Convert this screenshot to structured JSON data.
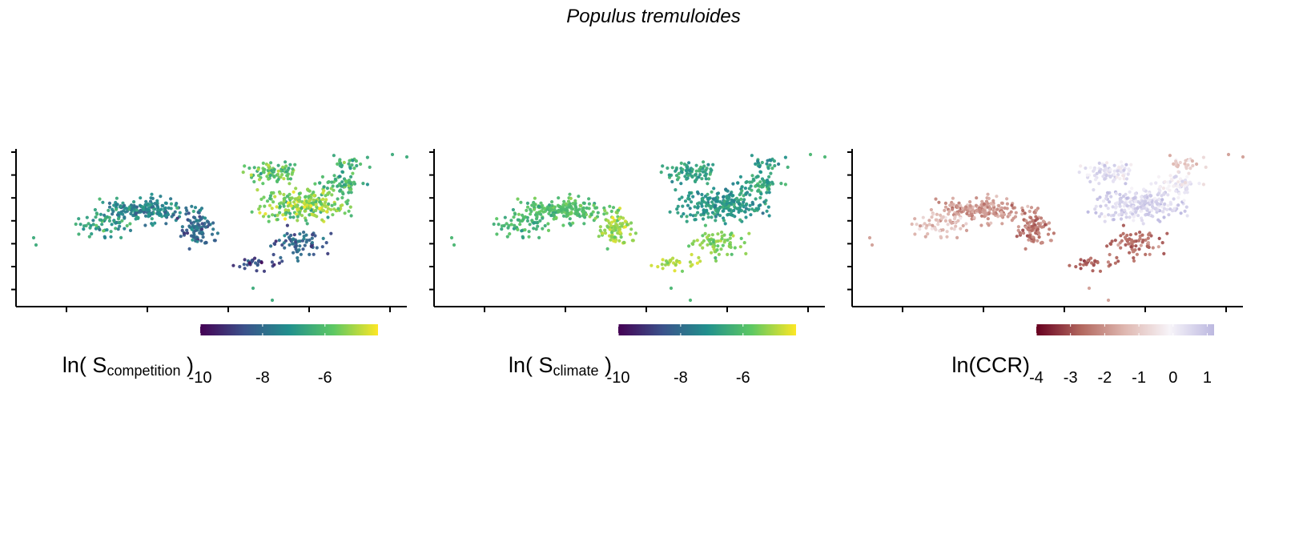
{
  "figure_title": "Populus tremuloides",
  "chart_data": [
    {
      "type": "scatter",
      "panel": "competition",
      "title": "",
      "xlabel": "",
      "ylabel": "",
      "x_tick_count": 5,
      "y_tick_count": 7,
      "axis_tick_labels_shown": false,
      "grid": false,
      "legend": {
        "position": "bottom",
        "label_main": "ln( S",
        "label_sub": "competition",
        "label_close": " )",
        "palette": "viridis",
        "colors": [
          "#440154",
          "#3b528b",
          "#21908d",
          "#5dc863",
          "#fde725"
        ],
        "range": [
          -10.0,
          -4.3
        ],
        "ticks": [
          -10,
          -8,
          -6
        ],
        "tick_labels": [
          "-10",
          "-8",
          "-6"
        ]
      },
      "clusters_description_values": "each point colored by ln(S_competition), range about -10 to -4.3; lower values concentrated in southwest and southeast clusters"
    },
    {
      "type": "scatter",
      "panel": "climate",
      "title": "",
      "xlabel": "",
      "ylabel": "",
      "x_tick_count": 5,
      "y_tick_count": 7,
      "axis_tick_labels_shown": false,
      "grid": false,
      "legend": {
        "position": "bottom",
        "label_main": "ln( S",
        "label_sub": "climate",
        "label_close": " )",
        "palette": "viridis",
        "colors": [
          "#440154",
          "#3b528b",
          "#21908d",
          "#5dc863",
          "#fde725"
        ],
        "range": [
          -10.0,
          -4.3
        ],
        "ticks": [
          -10,
          -8,
          -6
        ],
        "tick_labels": [
          "-10",
          "-8",
          "-6"
        ]
      }
    },
    {
      "type": "scatter",
      "panel": "ccr",
      "title": "",
      "xlabel": "",
      "ylabel": "",
      "x_tick_count": 5,
      "y_tick_count": 7,
      "axis_tick_labels_shown": false,
      "grid": false,
      "legend": {
        "position": "bottom",
        "label_main": "ln(CCR)",
        "label_sub": "",
        "label_close": "",
        "palette": "diverging red-white-purple",
        "colors": [
          "#67001f",
          "#b2675e",
          "#dfb8b1",
          "#f7f4f9",
          "#bcb8e0"
        ],
        "range": [
          -4.0,
          1.2
        ],
        "ticks": [
          -4,
          -3,
          -2,
          -1,
          0,
          1
        ],
        "tick_labels": [
          "-4",
          "-3",
          "-2",
          "-1",
          "0",
          "1"
        ]
      }
    }
  ]
}
